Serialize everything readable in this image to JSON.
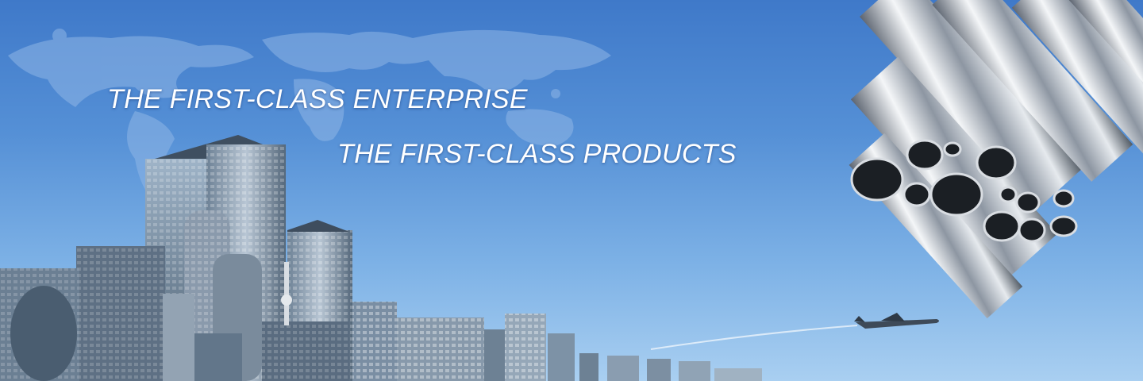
{
  "banner": {
    "headline_1": "THE FIRST-CLASS ENTERPRISE",
    "headline_2": "THE FIRST-CLASS PRODUCTS"
  },
  "colors": {
    "sky_top": "#3f79c9",
    "sky_bottom": "#a9cff1",
    "headline_text": "#ffffff"
  },
  "scene": {
    "background": "world-map-silhouette",
    "foreground_left": "city-skyline",
    "foreground_right": "stainless-steel-pipes",
    "accent": "airplane-with-contrail"
  }
}
